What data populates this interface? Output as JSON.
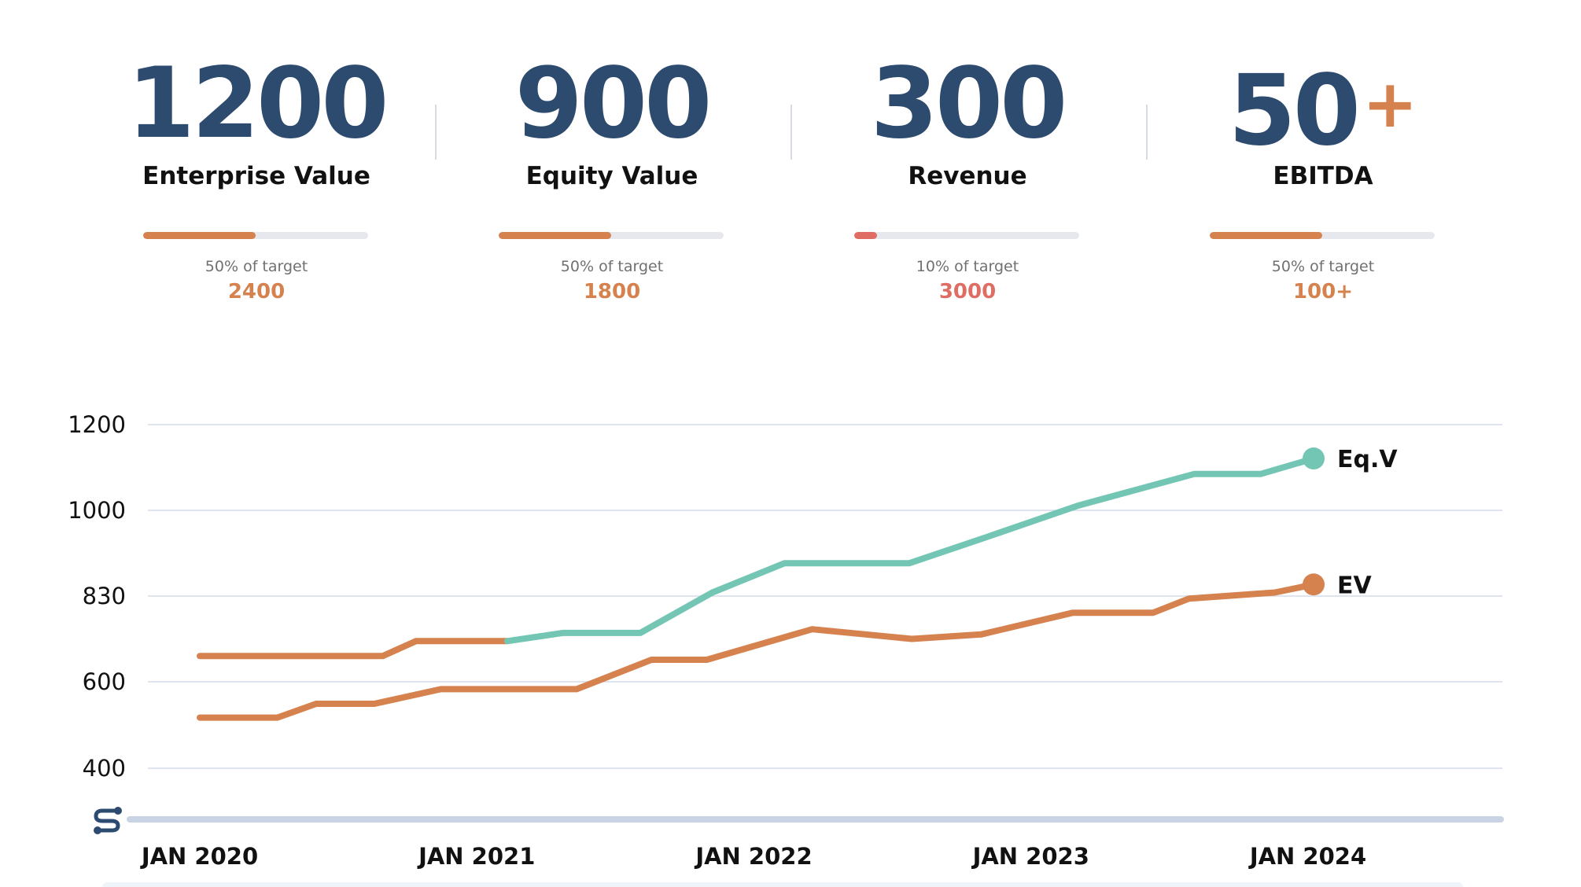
{
  "kpis": [
    {
      "value": "1200",
      "suffix": "",
      "label": "Enterprise Value",
      "progress": 0.5,
      "pct_text": "50% of target",
      "target": "2400",
      "color": "#d5824f"
    },
    {
      "value": "900",
      "suffix": "",
      "label": "Equity Value",
      "progress": 0.5,
      "pct_text": "50% of target",
      "target": "1800",
      "color": "#d5824f"
    },
    {
      "value": "300",
      "suffix": "",
      "label": "Revenue",
      "progress": 0.1,
      "pct_text": "10% of target",
      "target": "3000",
      "color": "#df6d63"
    },
    {
      "value": "50",
      "suffix": "+",
      "label": "EBITDA",
      "progress": 0.5,
      "pct_text": "50% of target",
      "target": "100+",
      "color": "#d5824f"
    }
  ],
  "colors": {
    "navy": "#2d4a6f",
    "orange": "#d5824f",
    "teal": "#74c6b4",
    "grid": "#d6dce8",
    "axis_bar": "#c8d3e3"
  },
  "axis_icon": "scroll-handle-icon",
  "chart_data": {
    "type": "line",
    "ylim": [
      300,
      1200
    ],
    "yticks": [
      400,
      600,
      830,
      1000,
      1200
    ],
    "ytick_labels": [
      "400",
      "600",
      "830",
      "1000",
      "1200"
    ],
    "xlim": [
      2019.9,
      2024.75
    ],
    "xticks": [
      2020.0,
      2021.0,
      2022.0,
      2023.0,
      2024.0
    ],
    "xtick_labels": [
      "JAN 2020",
      "JAN 2021",
      "JAN 2022",
      "JAN 2023",
      "JAN 2024"
    ],
    "grid": true,
    "series": [
      {
        "name": "Eq.V",
        "color": "#74c6b4",
        "points": [
          [
            2020.0,
            669
          ],
          [
            2020.66,
            669
          ],
          [
            2020.78,
            709
          ],
          [
            2021.11,
            709
          ],
          [
            2021.31,
            731
          ],
          [
            2021.59,
            731
          ],
          [
            2021.85,
            837
          ],
          [
            2022.11,
            895
          ],
          [
            2022.56,
            895
          ],
          [
            2022.84,
            947
          ],
          [
            2023.17,
            1011
          ],
          [
            2023.59,
            1085
          ],
          [
            2023.83,
            1085
          ],
          [
            2024.02,
            1121
          ]
        ],
        "end_marker": true,
        "orange_until": 2021.11
      },
      {
        "name": "EV",
        "color": "#d5824f",
        "points": [
          [
            2020.0,
            517
          ],
          [
            2020.28,
            517
          ],
          [
            2020.42,
            549
          ],
          [
            2020.63,
            549
          ],
          [
            2020.87,
            583
          ],
          [
            2021.36,
            583
          ],
          [
            2021.63,
            659
          ],
          [
            2021.83,
            659
          ],
          [
            2022.21,
            741
          ],
          [
            2022.57,
            715
          ],
          [
            2022.82,
            727
          ],
          [
            2023.15,
            785
          ],
          [
            2023.44,
            785
          ],
          [
            2023.57,
            823
          ],
          [
            2023.88,
            837
          ],
          [
            2024.02,
            853
          ]
        ],
        "end_marker": true
      }
    ]
  }
}
